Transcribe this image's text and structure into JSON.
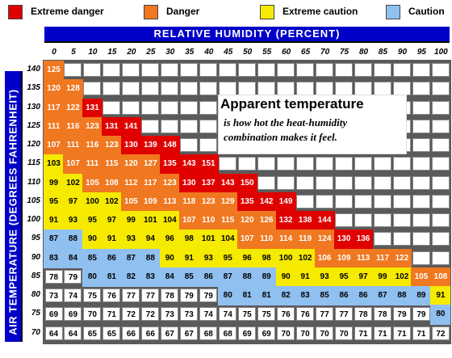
{
  "legend": [
    {
      "label": "Extreme danger",
      "color": "#e00000"
    },
    {
      "label": "Danger",
      "color": "#f07820"
    },
    {
      "label": "Extreme caution",
      "color": "#f5ea00"
    },
    {
      "label": "Caution",
      "color": "#90c0f0"
    }
  ],
  "axis": {
    "x_title": "RELATIVE HUMIDITY (PERCENT)",
    "y_title": "AIR TEMPERATURE (DEGREES FAHRENHEIT)"
  },
  "note": {
    "title": "Apparent temperature",
    "line1": "is how hot the heat-humidity",
    "line2": "combination makes it feel."
  },
  "chart_data": {
    "type": "table",
    "title": "Apparent temperature",
    "xlabel": "RELATIVE HUMIDITY (PERCENT)",
    "ylabel": "AIR TEMPERATURE (DEGREES FAHRENHEIT)",
    "humidity": [
      0,
      5,
      10,
      15,
      20,
      25,
      30,
      35,
      40,
      45,
      50,
      55,
      60,
      65,
      70,
      75,
      80,
      85,
      90,
      95,
      100
    ],
    "temperature": [
      140,
      135,
      130,
      125,
      120,
      115,
      110,
      105,
      100,
      95,
      90,
      85,
      80,
      75,
      70
    ],
    "values": [
      [
        125,
        null,
        null,
        null,
        null,
        null,
        null,
        null,
        null,
        null,
        null,
        null,
        null,
        null,
        null,
        null,
        null,
        null,
        null,
        null,
        null
      ],
      [
        120,
        128,
        null,
        null,
        null,
        null,
        null,
        null,
        null,
        null,
        null,
        null,
        null,
        null,
        null,
        null,
        null,
        null,
        null,
        null,
        null
      ],
      [
        117,
        122,
        131,
        null,
        null,
        null,
        null,
        null,
        null,
        null,
        null,
        null,
        null,
        null,
        null,
        null,
        null,
        null,
        null,
        null,
        null
      ],
      [
        111,
        116,
        123,
        131,
        141,
        null,
        null,
        null,
        null,
        null,
        null,
        null,
        null,
        null,
        null,
        null,
        null,
        null,
        null,
        null,
        null
      ],
      [
        107,
        111,
        116,
        123,
        130,
        139,
        148,
        null,
        null,
        null,
        null,
        null,
        null,
        null,
        null,
        null,
        null,
        null,
        null,
        null,
        null
      ],
      [
        103,
        107,
        111,
        115,
        120,
        127,
        135,
        143,
        151,
        null,
        null,
        null,
        null,
        null,
        null,
        null,
        null,
        null,
        null,
        null,
        null
      ],
      [
        99,
        102,
        105,
        108,
        112,
        117,
        123,
        130,
        137,
        143,
        150,
        null,
        null,
        null,
        null,
        null,
        null,
        null,
        null,
        null,
        null
      ],
      [
        95,
        97,
        100,
        102,
        105,
        109,
        113,
        118,
        123,
        129,
        135,
        142,
        149,
        null,
        null,
        null,
        null,
        null,
        null,
        null,
        null
      ],
      [
        91,
        93,
        95,
        97,
        99,
        101,
        104,
        107,
        110,
        115,
        120,
        126,
        132,
        138,
        144,
        null,
        null,
        null,
        null,
        null,
        null
      ],
      [
        87,
        88,
        90,
        91,
        93,
        94,
        96,
        98,
        101,
        104,
        107,
        110,
        114,
        119,
        124,
        130,
        136,
        null,
        null,
        null,
        null
      ],
      [
        83,
        84,
        85,
        86,
        87,
        88,
        90,
        91,
        93,
        95,
        96,
        98,
        100,
        102,
        106,
        109,
        113,
        117,
        122,
        null,
        null
      ],
      [
        78,
        79,
        80,
        81,
        82,
        83,
        84,
        85,
        86,
        87,
        88,
        89,
        90,
        91,
        93,
        95,
        97,
        99,
        102,
        105,
        108
      ],
      [
        73,
        74,
        75,
        76,
        77,
        77,
        78,
        79,
        79,
        80,
        81,
        81,
        82,
        83,
        85,
        86,
        86,
        87,
        88,
        89,
        91
      ],
      [
        69,
        69,
        70,
        71,
        72,
        72,
        73,
        73,
        74,
        74,
        75,
        75,
        76,
        76,
        77,
        77,
        78,
        78,
        79,
        79,
        80
      ],
      [
        64,
        64,
        65,
        65,
        66,
        66,
        67,
        67,
        68,
        68,
        69,
        69,
        70,
        70,
        70,
        70,
        71,
        71,
        71,
        71,
        72
      ]
    ],
    "category_thresholds": {
      "caution": 80,
      "extreme_caution": 90,
      "danger": 105,
      "extreme_danger": 130
    }
  }
}
